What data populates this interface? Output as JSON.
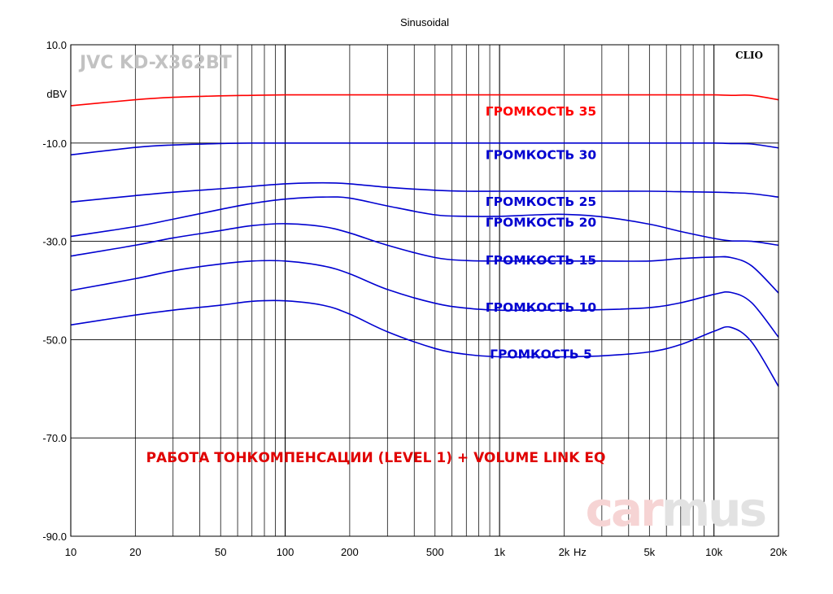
{
  "chart_data": {
    "type": "line",
    "title": "Sinusoidal",
    "device": "JVC KD-X362BT",
    "brand": "CLIO",
    "caption": "РАБОТА ТОНКОМПЕНСАЦИИ (LEVEL 1) + VOLUME LINK EQ",
    "watermark": {
      "part1": "car",
      "part2": "mus"
    },
    "ylabel": "dBV",
    "xunit": "Hz",
    "xscale": "log",
    "xlim": [
      10,
      20000
    ],
    "ylim": [
      -90,
      10
    ],
    "yticks": [
      10,
      -10,
      -30,
      -50,
      -70,
      -90
    ],
    "ytick_labels": [
      "10.0",
      "-10.0",
      "-30.0",
      "-50.0",
      "-70.0",
      "-90.0"
    ],
    "xticks": [
      10,
      20,
      50,
      100,
      200,
      500,
      1000,
      2000,
      5000,
      10000,
      20000
    ],
    "xtick_labels": [
      "10",
      "20",
      "50",
      "100",
      "200",
      "500",
      "1k",
      "2k",
      "5k",
      "10k",
      "20k"
    ],
    "grid": true,
    "x": [
      10,
      20,
      30,
      50,
      70,
      100,
      150,
      200,
      300,
      500,
      700,
      1000,
      1500,
      2000,
      3000,
      5000,
      7000,
      10000,
      12000,
      15000,
      20000
    ],
    "series": [
      {
        "name": "ГРОМКОСТЬ 35",
        "color": "#ff0000",
        "values": [
          -2.4,
          -1.2,
          -0.7,
          -0.4,
          -0.3,
          -0.2,
          -0.2,
          -0.2,
          -0.2,
          -0.2,
          -0.2,
          -0.2,
          -0.2,
          -0.2,
          -0.2,
          -0.2,
          -0.2,
          -0.2,
          -0.3,
          -0.3,
          -1.2
        ]
      },
      {
        "name": "ГРОМКОСТЬ 30",
        "color": "#0000d0",
        "values": [
          -12.4,
          -10.9,
          -10.4,
          -10.1,
          -10.0,
          -10.0,
          -10.0,
          -10.0,
          -10.0,
          -10.0,
          -10.0,
          -10.0,
          -10.0,
          -10.0,
          -10.0,
          -10.0,
          -10.0,
          -10.0,
          -10.1,
          -10.2,
          -11.0
        ]
      },
      {
        "name": "ГРОМКОСТЬ 25",
        "color": "#0000d0",
        "values": [
          -22.0,
          -20.7,
          -20.0,
          -19.3,
          -18.8,
          -18.3,
          -18.1,
          -18.3,
          -19.0,
          -19.6,
          -19.8,
          -19.8,
          -19.8,
          -19.8,
          -19.8,
          -19.8,
          -19.9,
          -20.0,
          -20.1,
          -20.3,
          -21.0
        ]
      },
      {
        "name": "ГРОМКОСТЬ 20",
        "color": "#0000d0",
        "values": [
          -29.0,
          -27.0,
          -25.5,
          -23.5,
          -22.3,
          -21.4,
          -21.0,
          -21.2,
          -22.8,
          -24.6,
          -24.9,
          -24.9,
          -24.6,
          -24.5,
          -25.0,
          -26.5,
          -28.0,
          -29.4,
          -29.9,
          -30.0,
          -30.8
        ]
      },
      {
        "name": "ГРОМКОСТЬ 15",
        "color": "#0000d0",
        "values": [
          -33.0,
          -30.8,
          -29.3,
          -27.8,
          -26.8,
          -26.4,
          -27.0,
          -28.3,
          -30.8,
          -33.3,
          -33.9,
          -34.0,
          -34.0,
          -34.0,
          -34.0,
          -34.0,
          -33.5,
          -33.2,
          -33.3,
          -35.0,
          -40.5
        ]
      },
      {
        "name": "ГРОМКОСТЬ 10",
        "color": "#0000d0",
        "values": [
          -40.0,
          -37.6,
          -36.0,
          -34.6,
          -34.0,
          -34.0,
          -35.0,
          -36.6,
          -39.8,
          -42.6,
          -43.6,
          -44.0,
          -44.0,
          -44.0,
          -43.9,
          -43.5,
          -42.5,
          -40.8,
          -40.4,
          -42.5,
          -49.5
        ]
      },
      {
        "name": "ГРОМКОСТЬ 5",
        "color": "#0000d0",
        "values": [
          -47.0,
          -45.0,
          -44.0,
          -43.0,
          -42.2,
          -42.1,
          -43.0,
          -44.8,
          -48.4,
          -51.8,
          -53.0,
          -53.5,
          -53.5,
          -53.5,
          -53.3,
          -52.5,
          -51.0,
          -48.3,
          -47.5,
          -50.5,
          -59.5
        ]
      }
    ],
    "series_label_y": [
      -3.4,
      -12.3,
      -21.8,
      -26.0,
      -33.7,
      -43.3,
      -52.8
    ]
  }
}
